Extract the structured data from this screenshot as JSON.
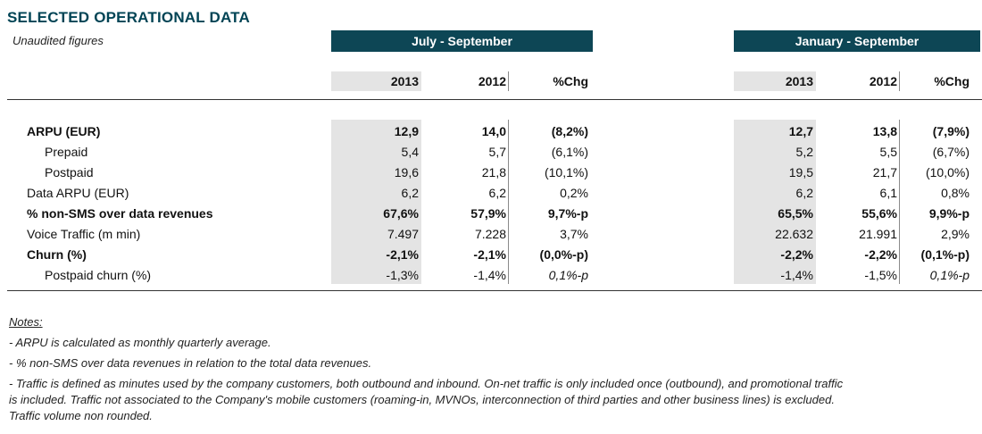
{
  "title": "SELECTED OPERATIONAL DATA",
  "subtitle": "Unaudited figures",
  "periods": {
    "q": "July - September",
    "ytd": "January - September"
  },
  "headers": {
    "y1": "2013",
    "y2": "2012",
    "chg": "%Chg"
  },
  "rows": [
    {
      "label": "ARPU (EUR)",
      "bold": true,
      "indent": 0,
      "q": [
        "12,9",
        "14,0",
        "(8,2%)"
      ],
      "ytd": [
        "12,7",
        "13,8",
        "(7,9%)"
      ]
    },
    {
      "label": "Prepaid",
      "bold": false,
      "indent": 1,
      "q": [
        "5,4",
        "5,7",
        "(6,1%)"
      ],
      "ytd": [
        "5,2",
        "5,5",
        "(6,7%)"
      ]
    },
    {
      "label": "Postpaid",
      "bold": false,
      "indent": 1,
      "q": [
        "19,6",
        "21,8",
        "(10,1%)"
      ],
      "ytd": [
        "19,5",
        "21,7",
        "(10,0%)"
      ]
    },
    {
      "label": "Data ARPU (EUR)",
      "bold": false,
      "indent": 0,
      "q": [
        "6,2",
        "6,2",
        "0,2%"
      ],
      "ytd": [
        "6,2",
        "6,1",
        "0,8%"
      ]
    },
    {
      "label": "% non-SMS over data revenues",
      "bold": true,
      "indent": 0,
      "q": [
        "67,6%",
        "57,9%",
        "9,7%-p"
      ],
      "ytd": [
        "65,5%",
        "55,6%",
        "9,9%-p"
      ]
    },
    {
      "label": "Voice Traffic (m min)",
      "bold": false,
      "indent": 0,
      "q": [
        "7.497",
        "7.228",
        "3,7%"
      ],
      "ytd": [
        "22.632",
        "21.991",
        "2,9%"
      ]
    },
    {
      "label": "Churn (%)",
      "bold": true,
      "indent": 0,
      "q": [
        "-2,1%",
        "-2,1%",
        "(0,0%-p)"
      ],
      "ytd": [
        "-2,2%",
        "-2,2%",
        "(0,1%-p)"
      ]
    },
    {
      "label": "Postpaid churn (%)",
      "bold": false,
      "indent": 1,
      "italicChg": true,
      "q": [
        "-1,3%",
        "-1,4%",
        "0,1%-p"
      ],
      "ytd": [
        "-1,4%",
        "-1,5%",
        "0,1%-p"
      ]
    }
  ],
  "notes": {
    "title": "Notes:",
    "lines": [
      "- ARPU is calculated as monthly quarterly average.",
      "- % non-SMS over data revenues in relation to the total data revenues.",
      "- Traffic is defined as minutes used by the company customers, both outbound and inbound. On-net traffic is only included once (outbound), and promotional traffic",
      "is included. Traffic not associated to the Company's mobile customers (roaming-in, MVNOs, interconnection of third parties and other business lines) is excluded.",
      "Traffic volume non rounded."
    ]
  },
  "colors": {
    "band": "#0d4655",
    "grey": "#e4e4e4",
    "title": "#004455"
  }
}
